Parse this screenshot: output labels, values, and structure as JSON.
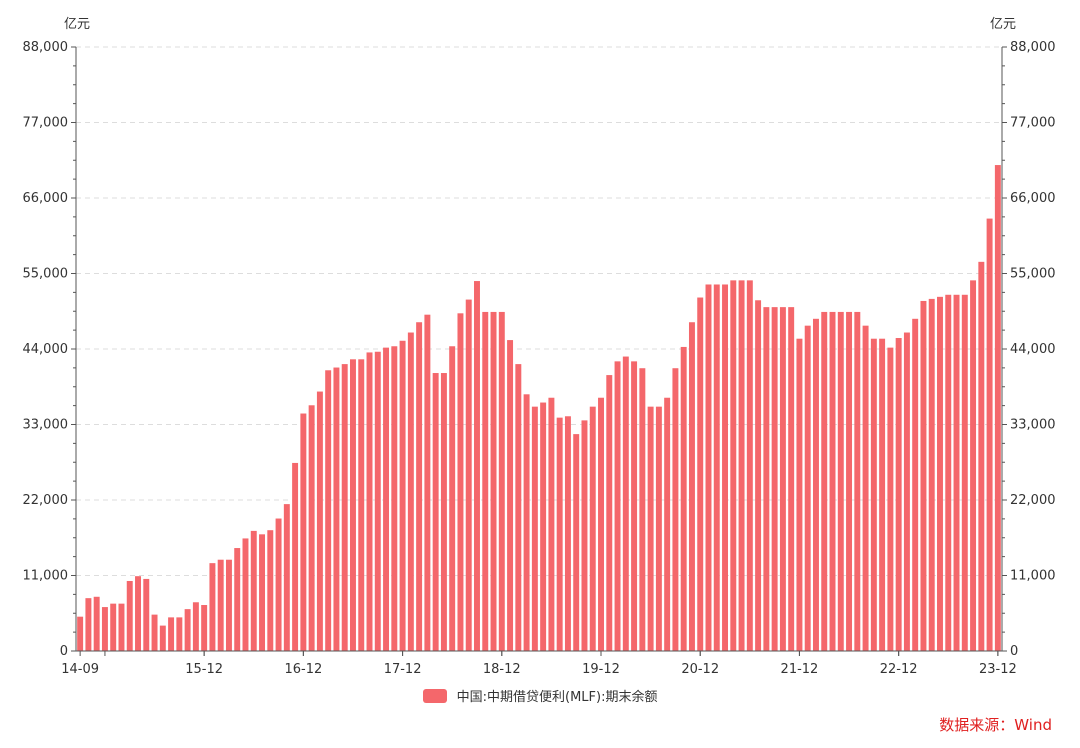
{
  "chart_data": {
    "type": "bar",
    "y_unit_left": "亿元",
    "y_unit_right": "亿元",
    "ylim": [
      0,
      88000
    ],
    "yticks": [
      0,
      11000,
      22000,
      33000,
      44000,
      55000,
      66000,
      77000,
      88000
    ],
    "ytick_labels": [
      "0",
      "11,000",
      "22,000",
      "33,000",
      "44,000",
      "55,000",
      "66,000",
      "77,000",
      "88,000"
    ],
    "x_tick_labels": [
      {
        "label": "14-09",
        "index": 0
      },
      {
        "label": "15-12",
        "index": 15
      },
      {
        "label": "16-12",
        "index": 27
      },
      {
        "label": "17-12",
        "index": 39
      },
      {
        "label": "18-12",
        "index": 51
      },
      {
        "label": "19-12",
        "index": 63
      },
      {
        "label": "20-12",
        "index": 75
      },
      {
        "label": "21-12",
        "index": 87
      },
      {
        "label": "22-12",
        "index": 99
      },
      {
        "label": "23-12",
        "index": 111
      }
    ],
    "grid": true,
    "legend_position": "bottom",
    "series": [
      {
        "name": "中国:中期借贷便利(MLF):期末余额",
        "color": "#f4676b",
        "start": "2014-09",
        "values": [
          5000,
          7700,
          7900,
          6400,
          6900,
          6900,
          10200,
          10900,
          10500,
          5300,
          3700,
          4900,
          4900,
          6100,
          7100,
          6700,
          12800,
          13300,
          13300,
          15000,
          16400,
          17500,
          17000,
          17600,
          19300,
          21400,
          27400,
          34600,
          35800,
          37800,
          40900,
          41300,
          41800,
          42500,
          42500,
          43500,
          43600,
          44200,
          44400,
          45200,
          46400,
          47900,
          49000,
          40500,
          40500,
          44400,
          49200,
          51200,
          53900,
          49400,
          49400,
          49400,
          45300,
          41800,
          37400,
          35600,
          36200,
          36900,
          34000,
          34200,
          31600,
          33600,
          35600,
          36900,
          40200,
          42200,
          42900,
          42200,
          41200,
          35600,
          35600,
          36900,
          41200,
          44300,
          47900,
          51500,
          53400,
          53400,
          53400,
          54000,
          54000,
          54000,
          51100,
          50100,
          50100,
          50100,
          50100,
          45500,
          47400,
          48400,
          49400,
          49400,
          49400,
          49400,
          49400,
          47400,
          45500,
          45500,
          44200,
          45600,
          46400,
          48400,
          51000,
          51300,
          51600,
          51900,
          51900,
          51900,
          54000,
          56700,
          63000,
          70800
        ]
      }
    ],
    "source": "数据来源：Wind"
  }
}
